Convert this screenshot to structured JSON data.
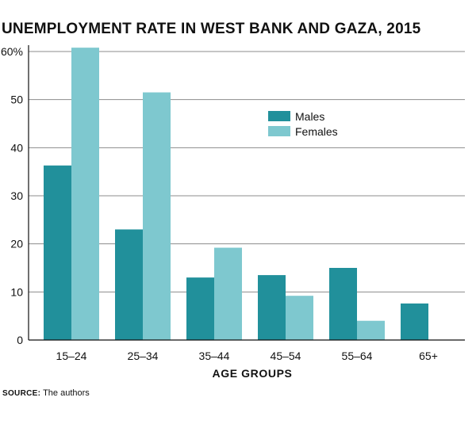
{
  "source": {
    "label": "SOURCE:",
    "text": "The authors"
  },
  "chart_data": {
    "type": "bar",
    "title": "UNEMPLOYMENT RATE IN WEST BANK AND GAZA, 2015",
    "xlabel": "AGE GROUPS",
    "ylabel": "",
    "categories": [
      "15–24",
      "25–34",
      "35–44",
      "45–54",
      "55–64",
      "65+"
    ],
    "series": [
      {
        "name": "Males",
        "color": "#21909b",
        "values": [
          36.3,
          23.0,
          13.0,
          13.5,
          15.0,
          7.6
        ]
      },
      {
        "name": "Females",
        "color": "#7ec8cf",
        "values": [
          60.8,
          51.5,
          19.2,
          9.2,
          4.0,
          null
        ]
      }
    ],
    "ylim": [
      0,
      60
    ],
    "yticks": [
      0,
      10,
      20,
      30,
      40,
      50,
      60
    ],
    "ytick_labels": [
      "0",
      "10",
      "20",
      "30",
      "40",
      "50",
      "60%"
    ],
    "grid": true,
    "legend_position": "top-right"
  }
}
